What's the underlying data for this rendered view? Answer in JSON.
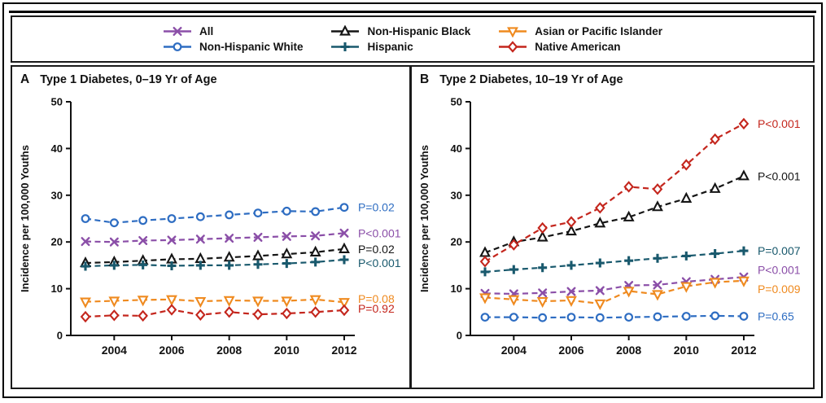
{
  "figure": {
    "legend_position": "top",
    "frame_color": "#000000",
    "panel_border_color": "#1a1a1a"
  },
  "legend": {
    "items": [
      {
        "label": "All",
        "color": "#8b4fa8",
        "marker": "x"
      },
      {
        "label": "Non-Hispanic White",
        "color": "#2e6dc2",
        "marker": "circle"
      },
      {
        "label": "Non-Hispanic Black",
        "color": "#151515",
        "marker": "triangle-up"
      },
      {
        "label": "Hispanic",
        "color": "#19596d",
        "marker": "plus"
      },
      {
        "label": "Asian or Pacific Islander",
        "color": "#ef8a1f",
        "marker": "triangle-down"
      },
      {
        "label": "Native American",
        "color": "#c4261d",
        "marker": "diamond"
      }
    ]
  },
  "chart_data": [
    {
      "type": "line",
      "panel_letter": "A",
      "title": "Type 1 Diabetes, 0–19 Yr of Age",
      "ylabel": "Incidence per 100,000 Youths",
      "x": [
        2003,
        2004,
        2005,
        2006,
        2007,
        2008,
        2009,
        2010,
        2011,
        2012
      ],
      "xticks": [
        2004,
        2006,
        2008,
        2010,
        2012
      ],
      "ylim": [
        0,
        50
      ],
      "yticks": [
        0,
        10,
        20,
        30,
        40,
        50
      ],
      "grid": false,
      "series": [
        {
          "name": "All",
          "color": "#8b4fa8",
          "marker": "x",
          "p_label": "P<0.001",
          "values": [
            20.1,
            20.0,
            20.3,
            20.4,
            20.6,
            20.8,
            21.0,
            21.2,
            21.3,
            21.9
          ]
        },
        {
          "name": "Non-Hispanic White",
          "color": "#2e6dc2",
          "marker": "circle",
          "p_label": "P=0.02",
          "values": [
            25.0,
            24.1,
            24.6,
            25.0,
            25.4,
            25.8,
            26.2,
            26.6,
            26.5,
            27.4
          ]
        },
        {
          "name": "Non-Hispanic Black",
          "color": "#151515",
          "marker": "triangle-up",
          "p_label": "P=0.02",
          "values": [
            15.5,
            15.7,
            16.0,
            16.3,
            16.4,
            16.7,
            17.0,
            17.4,
            17.8,
            18.5
          ]
        },
        {
          "name": "Hispanic",
          "color": "#19596d",
          "marker": "plus",
          "p_label": "P<0.001",
          "p_dy": 4,
          "values": [
            14.8,
            15.0,
            15.1,
            14.9,
            15.0,
            15.0,
            15.2,
            15.4,
            15.7,
            16.2
          ]
        },
        {
          "name": "Asian or Pacific Islander",
          "color": "#ef8a1f",
          "marker": "triangle-down",
          "p_label": "P=0.08",
          "p_dy": -4,
          "values": [
            7.2,
            7.4,
            7.6,
            7.7,
            7.3,
            7.5,
            7.4,
            7.4,
            7.7,
            7.1
          ]
        },
        {
          "name": "Native American",
          "color": "#c4261d",
          "marker": "diamond",
          "p_label": "P=0.92",
          "p_dy": -2,
          "values": [
            4.0,
            4.3,
            4.2,
            5.5,
            4.4,
            5.0,
            4.5,
            4.7,
            5.0,
            5.4
          ]
        }
      ]
    },
    {
      "type": "line",
      "panel_letter": "B",
      "title": "Type 2 Diabetes, 10–19 Yr of Age",
      "ylabel": "Incidence per 100,000 Youths",
      "x": [
        2003,
        2004,
        2005,
        2006,
        2007,
        2008,
        2009,
        2010,
        2011,
        2012
      ],
      "xticks": [
        2004,
        2006,
        2008,
        2010,
        2012
      ],
      "ylim": [
        0,
        50
      ],
      "yticks": [
        0,
        10,
        20,
        30,
        40,
        50
      ],
      "grid": false,
      "series": [
        {
          "name": "All",
          "color": "#8b4fa8",
          "marker": "x",
          "p_label": "P<0.001",
          "p_dy": -9,
          "values": [
            9.0,
            8.9,
            9.1,
            9.4,
            9.6,
            10.7,
            10.8,
            11.5,
            12.0,
            12.5
          ]
        },
        {
          "name": "Non-Hispanic White",
          "color": "#2e6dc2",
          "marker": "circle",
          "p_label": "P=0.65",
          "values": [
            3.9,
            3.9,
            3.8,
            3.9,
            3.8,
            3.9,
            4.0,
            4.1,
            4.2,
            4.1
          ]
        },
        {
          "name": "Non-Hispanic Black",
          "color": "#151515",
          "marker": "triangle-up",
          "p_label": "P<0.001",
          "values": [
            17.7,
            20.0,
            21.0,
            22.3,
            24.0,
            25.3,
            27.5,
            29.3,
            31.4,
            34.1
          ]
        },
        {
          "name": "Hispanic",
          "color": "#19596d",
          "marker": "plus",
          "p_label": "P=0.007",
          "values": [
            13.6,
            14.1,
            14.5,
            15.0,
            15.5,
            16.0,
            16.5,
            17.0,
            17.5,
            18.1
          ]
        },
        {
          "name": "Asian or Pacific Islander",
          "color": "#ef8a1f",
          "marker": "triangle-down",
          "p_label": "P=0.009",
          "p_dy": 10,
          "values": [
            8.1,
            7.7,
            7.3,
            7.5,
            6.8,
            9.5,
            8.8,
            10.5,
            11.4,
            11.7
          ]
        },
        {
          "name": "Native American",
          "color": "#c4261d",
          "marker": "diamond",
          "p_label": "P<0.001",
          "values": [
            15.8,
            19.4,
            23.0,
            24.3,
            27.3,
            31.8,
            31.3,
            36.5,
            42.0,
            45.3
          ]
        }
      ]
    }
  ]
}
